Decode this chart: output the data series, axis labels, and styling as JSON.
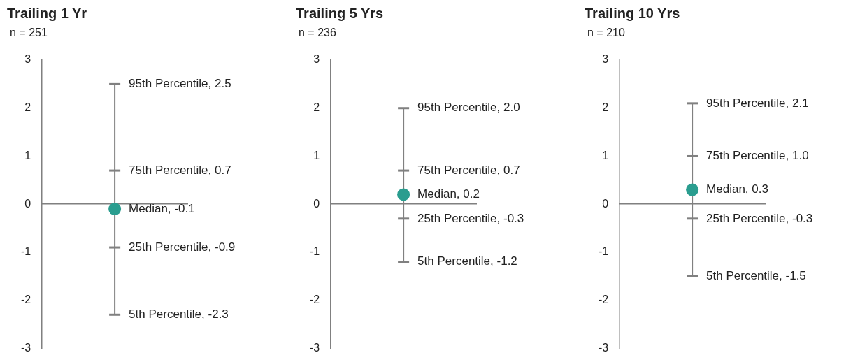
{
  "chart_data": [
    {
      "type": "box",
      "title": "Trailing 1 Yr",
      "subtitle": "n = 251",
      "categories": [
        null
      ],
      "series": [
        {
          "color": "#808080",
          "boxes": [
            {
              "low": -2.3,
              "q1": -0.9,
              "median": -0.1,
              "q3": 0.7,
              "high": 2.5
            }
          ]
        }
      ],
      "ylim": [
        -3,
        3
      ],
      "yticks": [
        -3,
        -2,
        -1,
        0,
        1,
        2,
        3
      ],
      "tick_labels": "y",
      "annotations": [
        "95th Percentile, 2.5",
        "75th Percentile, 0.7",
        "Median, -0.1",
        "25th Percentile, -0.9",
        "5th Percentile, -2.3"
      ]
    },
    {
      "type": "box",
      "title": "Trailing 5 Yrs",
      "subtitle": "n = 236",
      "categories": [
        null
      ],
      "series": [
        {
          "color": "#808080",
          "boxes": [
            {
              "low": -1.2,
              "q1": -0.3,
              "median": 0.2,
              "q3": 0.7,
              "high": 2.0
            }
          ]
        }
      ],
      "ylim": [
        -3,
        3
      ],
      "yticks": [
        -3,
        -2,
        -1,
        0,
        1,
        2,
        3
      ],
      "tick_labels": "y",
      "annotations": [
        "95th Percentile, 2.0",
        "75th Percentile, 0.7",
        "Median, 0.2",
        "25th Percentile, -0.3",
        "5th Percentile, -1.2"
      ]
    },
    {
      "type": "box",
      "title": "Trailing 10 Yrs",
      "subtitle": "n = 210",
      "categories": [
        null
      ],
      "series": [
        {
          "color": "#808080",
          "boxes": [
            {
              "low": -1.5,
              "q1": -0.3,
              "median": 0.3,
              "q3": 1.0,
              "high": 2.1
            }
          ]
        }
      ],
      "ylim": [
        -3,
        3
      ],
      "yticks": [
        -3,
        -2,
        -1,
        0,
        1,
        2,
        3
      ],
      "tick_labels": "y",
      "annotations": [
        "95th Percentile, 2.1",
        "75th Percentile, 1.0",
        "Median, 0.3",
        "25th Percentile, -0.3",
        "5th Percentile, -1.5"
      ]
    }
  ]
}
